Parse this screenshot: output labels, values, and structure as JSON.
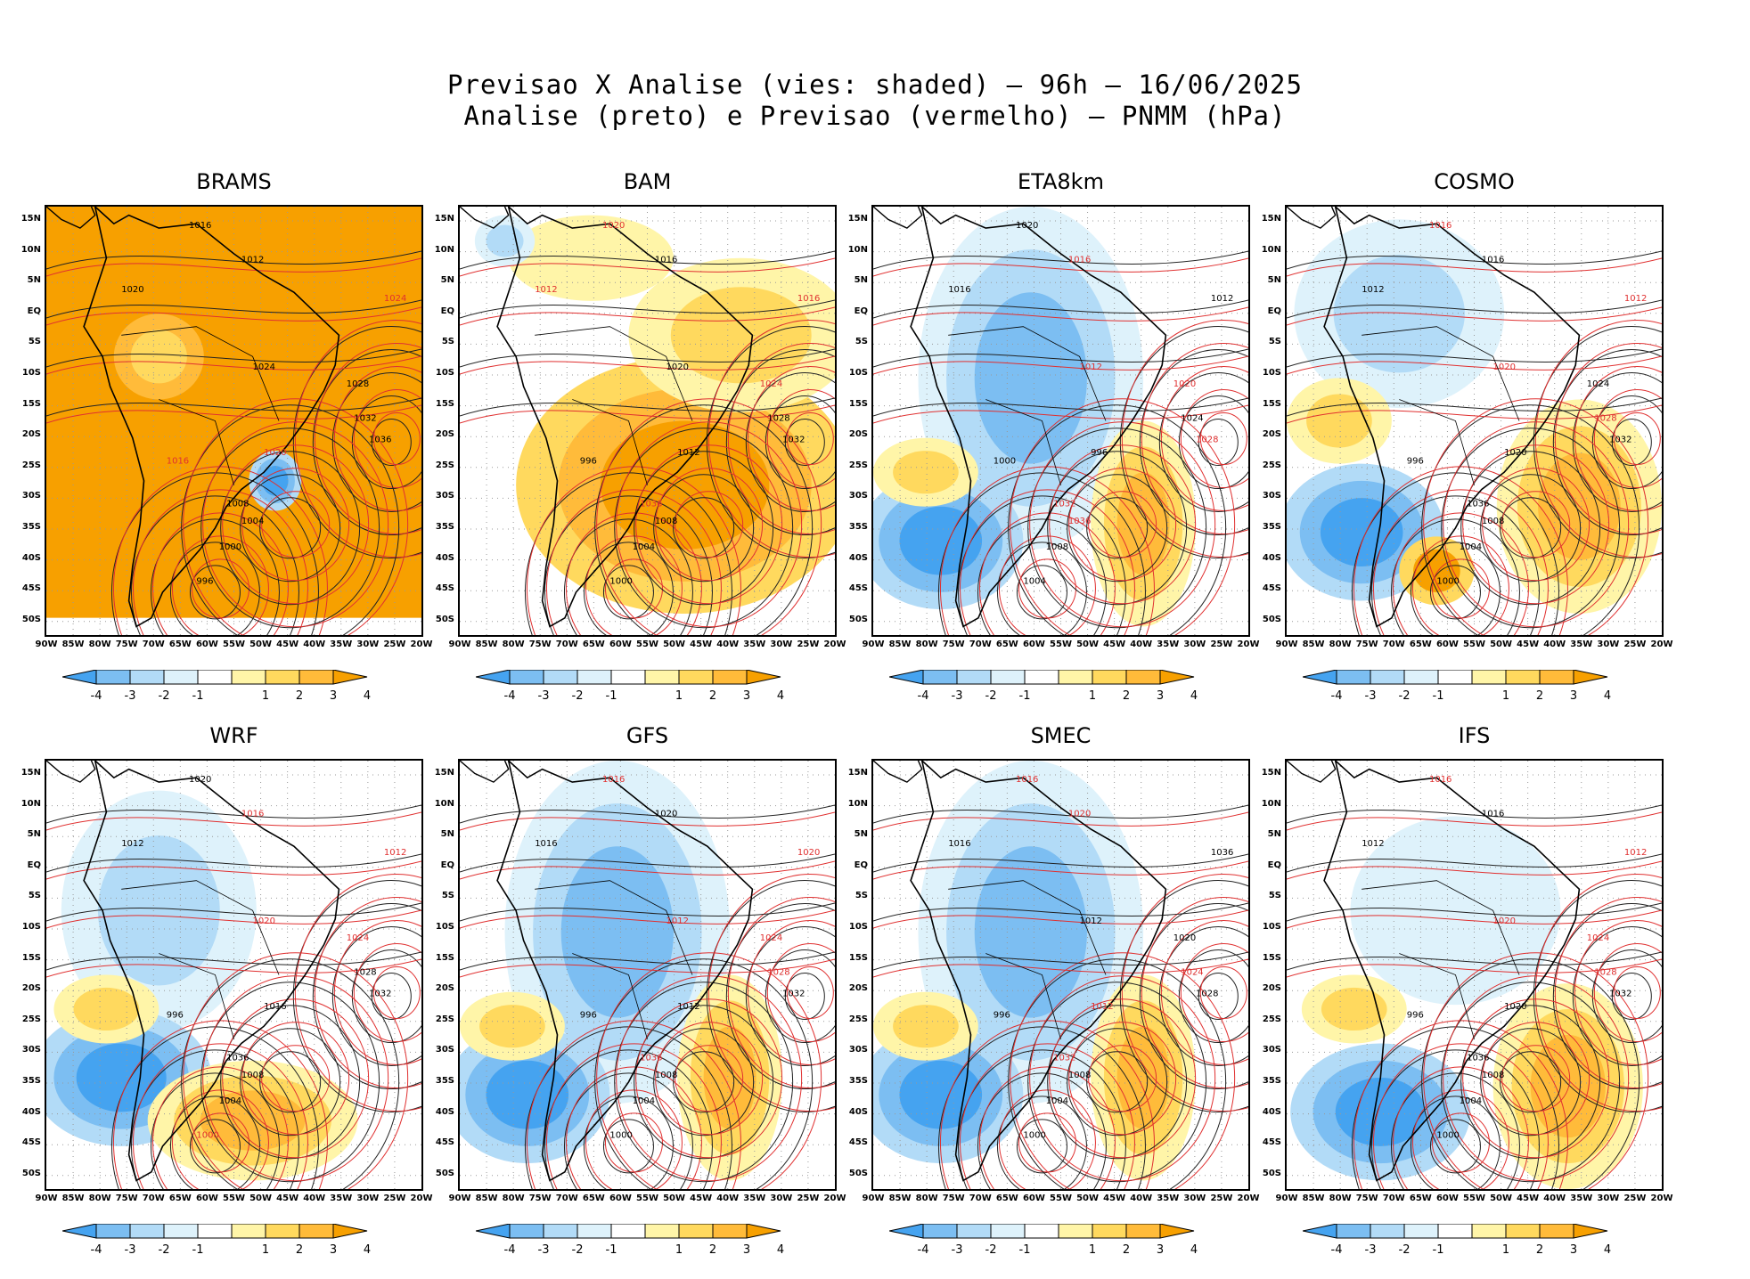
{
  "header": {
    "line1": "Previsao X Analise (vies: shaded) — 96h — 16/06/2025",
    "line2": "Analise (preto) e Previsao (vermelho) — PNMM (hPa)"
  },
  "lat_labels": [
    "15N",
    "10N",
    "5N",
    "EQ",
    "5S",
    "10S",
    "15S",
    "20S",
    "25S",
    "30S",
    "35S",
    "40S",
    "45S",
    "50S"
  ],
  "lon_labels": [
    "90W",
    "85W",
    "80W",
    "75W",
    "70W",
    "65W",
    "60W",
    "55W",
    "50W",
    "45W",
    "40W",
    "35W",
    "30W",
    "25W",
    "20W"
  ],
  "colorbar": {
    "labels": [
      "-4",
      "-3",
      "-2",
      "-1",
      "1",
      "2",
      "3",
      "4"
    ],
    "colors": [
      "#45a3f0",
      "#7cbef2",
      "#b2dbf7",
      "#def2fb",
      "#ffffff",
      "#fff5a8",
      "#ffd95e",
      "#ffbb3a",
      "#f7a000"
    ]
  },
  "panels": [
    {
      "name": "BRAMS",
      "bias": "warm-all",
      "contours": [
        {
          "label": "1016",
          "color": "analysis"
        },
        {
          "label": "1012",
          "color": "analysis"
        },
        {
          "label": "1020",
          "color": "analysis"
        },
        {
          "label": "1024",
          "color": "analysis"
        },
        {
          "label": "1028",
          "color": "analysis"
        },
        {
          "label": "1032",
          "color": "analysis"
        },
        {
          "label": "1036",
          "color": "analysis"
        },
        {
          "label": "1008",
          "color": "analysis"
        },
        {
          "label": "1004",
          "color": "analysis"
        },
        {
          "label": "1000",
          "color": "analysis"
        },
        {
          "label": "996",
          "color": "analysis"
        },
        {
          "label": "1016",
          "color": "forecast"
        },
        {
          "label": "1020",
          "color": "forecast"
        },
        {
          "label": "1024",
          "color": "forecast"
        }
      ]
    },
    {
      "name": "BAM",
      "bias": "warm-south",
      "contours": [
        {
          "label": "1020",
          "color": "forecast"
        },
        {
          "label": "1016",
          "color": "analysis"
        },
        {
          "label": "1012",
          "color": "forecast"
        },
        {
          "label": "1020",
          "color": "analysis"
        },
        {
          "label": "1024",
          "color": "forecast"
        },
        {
          "label": "1028",
          "color": "analysis"
        },
        {
          "label": "1032",
          "color": "analysis"
        },
        {
          "label": "1036",
          "color": "forecast"
        },
        {
          "label": "1008",
          "color": "analysis"
        },
        {
          "label": "1004",
          "color": "analysis"
        },
        {
          "label": "1000",
          "color": "analysis"
        },
        {
          "label": "996",
          "color": "analysis"
        },
        {
          "label": "1012",
          "color": "analysis"
        },
        {
          "label": "1016",
          "color": "forecast"
        }
      ]
    },
    {
      "name": "ETA8km",
      "bias": "cool-continent",
      "contours": [
        {
          "label": "1020",
          "color": "analysis"
        },
        {
          "label": "1016",
          "color": "forecast"
        },
        {
          "label": "1016",
          "color": "analysis"
        },
        {
          "label": "1012",
          "color": "forecast"
        },
        {
          "label": "1020",
          "color": "forecast"
        },
        {
          "label": "1024",
          "color": "analysis"
        },
        {
          "label": "1028",
          "color": "forecast"
        },
        {
          "label": "1032",
          "color": "forecast"
        },
        {
          "label": "1036",
          "color": "forecast"
        },
        {
          "label": "1008",
          "color": "analysis"
        },
        {
          "label": "1004",
          "color": "analysis"
        },
        {
          "label": "1000",
          "color": "analysis"
        },
        {
          "label": "996",
          "color": "analysis"
        },
        {
          "label": "1012",
          "color": "analysis"
        }
      ]
    },
    {
      "name": "COSMO",
      "bias": "mixed",
      "contours": [
        {
          "label": "1016",
          "color": "forecast"
        },
        {
          "label": "1016",
          "color": "analysis"
        },
        {
          "label": "1012",
          "color": "analysis"
        },
        {
          "label": "1020",
          "color": "forecast"
        },
        {
          "label": "1024",
          "color": "analysis"
        },
        {
          "label": "1028",
          "color": "forecast"
        },
        {
          "label": "1032",
          "color": "analysis"
        },
        {
          "label": "1036",
          "color": "analysis"
        },
        {
          "label": "1008",
          "color": "analysis"
        },
        {
          "label": "1004",
          "color": "analysis"
        },
        {
          "label": "1000",
          "color": "analysis"
        },
        {
          "label": "996",
          "color": "analysis"
        },
        {
          "label": "1020",
          "color": "analysis"
        },
        {
          "label": "1012",
          "color": "forecast"
        }
      ]
    },
    {
      "name": "WRF",
      "bias": "cool-south",
      "contours": [
        {
          "label": "1020",
          "color": "analysis"
        },
        {
          "label": "1016",
          "color": "forecast"
        },
        {
          "label": "1012",
          "color": "analysis"
        },
        {
          "label": "1020",
          "color": "forecast"
        },
        {
          "label": "1024",
          "color": "forecast"
        },
        {
          "label": "1028",
          "color": "analysis"
        },
        {
          "label": "1032",
          "color": "analysis"
        },
        {
          "label": "1036",
          "color": "analysis"
        },
        {
          "label": "1008",
          "color": "analysis"
        },
        {
          "label": "1004",
          "color": "analysis"
        },
        {
          "label": "1000",
          "color": "forecast"
        },
        {
          "label": "996",
          "color": "analysis"
        },
        {
          "label": "1016",
          "color": "analysis"
        },
        {
          "label": "1012",
          "color": "forecast"
        }
      ]
    },
    {
      "name": "GFS",
      "bias": "cool-continent",
      "contours": [
        {
          "label": "1016",
          "color": "forecast"
        },
        {
          "label": "1020",
          "color": "analysis"
        },
        {
          "label": "1016",
          "color": "analysis"
        },
        {
          "label": "1012",
          "color": "forecast"
        },
        {
          "label": "1024",
          "color": "forecast"
        },
        {
          "label": "1028",
          "color": "forecast"
        },
        {
          "label": "1032",
          "color": "analysis"
        },
        {
          "label": "1036",
          "color": "forecast"
        },
        {
          "label": "1008",
          "color": "analysis"
        },
        {
          "label": "1004",
          "color": "analysis"
        },
        {
          "label": "1000",
          "color": "analysis"
        },
        {
          "label": "996",
          "color": "analysis"
        },
        {
          "label": "1012",
          "color": "analysis"
        },
        {
          "label": "1020",
          "color": "forecast"
        }
      ]
    },
    {
      "name": "SMEC",
      "bias": "cool-continent",
      "contours": [
        {
          "label": "1016",
          "color": "forecast"
        },
        {
          "label": "1020",
          "color": "forecast"
        },
        {
          "label": "1016",
          "color": "analysis"
        },
        {
          "label": "1012",
          "color": "analysis"
        },
        {
          "label": "1020",
          "color": "analysis"
        },
        {
          "label": "1024",
          "color": "forecast"
        },
        {
          "label": "1028",
          "color": "analysis"
        },
        {
          "label": "1032",
          "color": "forecast"
        },
        {
          "label": "1008",
          "color": "analysis"
        },
        {
          "label": "1004",
          "color": "analysis"
        },
        {
          "label": "1000",
          "color": "analysis"
        },
        {
          "label": "996",
          "color": "analysis"
        },
        {
          "label": "1012",
          "color": "forecast"
        },
        {
          "label": "1036",
          "color": "analysis"
        }
      ]
    },
    {
      "name": "IFS",
      "bias": "cool-south-mild",
      "contours": [
        {
          "label": "1016",
          "color": "forecast"
        },
        {
          "label": "1016",
          "color": "analysis"
        },
        {
          "label": "1012",
          "color": "analysis"
        },
        {
          "label": "1020",
          "color": "forecast"
        },
        {
          "label": "1024",
          "color": "forecast"
        },
        {
          "label": "1028",
          "color": "forecast"
        },
        {
          "label": "1032",
          "color": "analysis"
        },
        {
          "label": "1036",
          "color": "analysis"
        },
        {
          "label": "1008",
          "color": "analysis"
        },
        {
          "label": "1004",
          "color": "analysis"
        },
        {
          "label": "1000",
          "color": "analysis"
        },
        {
          "label": "996",
          "color": "analysis"
        },
        {
          "label": "1020",
          "color": "analysis"
        },
        {
          "label": "1012",
          "color": "forecast"
        }
      ]
    }
  ]
}
